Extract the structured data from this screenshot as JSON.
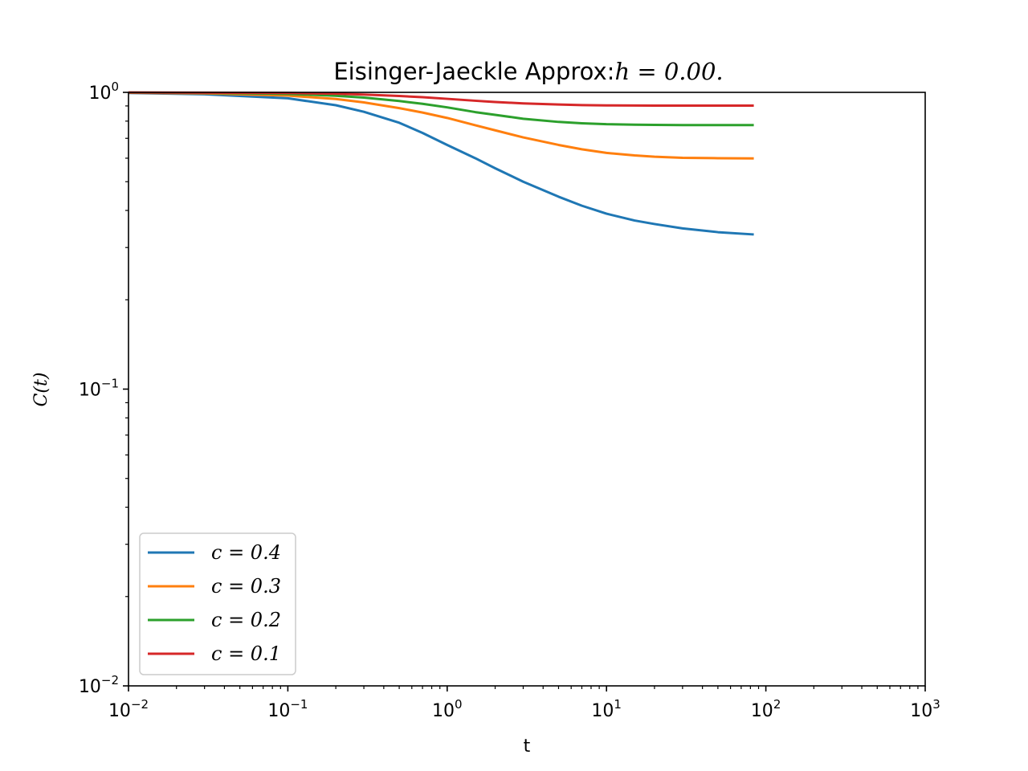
{
  "chart_data": {
    "type": "line",
    "title_prefix": "Eisinger-Jaeckle Approx:",
    "title_math": "h = 0.00.",
    "xlabel": "t",
    "ylabel": "C(t)",
    "xscale": "log",
    "yscale": "log",
    "xlim": [
      0.01,
      1000
    ],
    "ylim": [
      0.01,
      1
    ],
    "x_ticks": [
      {
        "base": "10",
        "exp": "−2"
      },
      {
        "base": "10",
        "exp": "−1"
      },
      {
        "base": "10",
        "exp": "0"
      },
      {
        "base": "10",
        "exp": "1"
      },
      {
        "base": "10",
        "exp": "2"
      },
      {
        "base": "10",
        "exp": "3"
      }
    ],
    "y_ticks": [
      {
        "base": "10",
        "exp": "−2"
      },
      {
        "base": "10",
        "exp": "−1"
      },
      {
        "base": "10",
        "exp": "0"
      }
    ],
    "legend_position": "lower-left",
    "grid": false,
    "series": [
      {
        "name": "c = 0.4",
        "color": "#1f77b4",
        "x": [
          0.01,
          0.03,
          0.1,
          0.2,
          0.3,
          0.5,
          0.7,
          1,
          1.5,
          2,
          3,
          5,
          7,
          10,
          15,
          20,
          30,
          50,
          84
        ],
        "y": [
          0.995,
          0.985,
          0.955,
          0.905,
          0.86,
          0.79,
          0.73,
          0.665,
          0.6,
          0.555,
          0.5,
          0.445,
          0.415,
          0.39,
          0.37,
          0.36,
          0.348,
          0.338,
          0.332
        ]
      },
      {
        "name": "c = 0.3",
        "color": "#ff7f0e",
        "x": [
          0.01,
          0.03,
          0.1,
          0.2,
          0.3,
          0.5,
          0.7,
          1,
          1.5,
          2,
          3,
          5,
          7,
          10,
          15,
          20,
          30,
          50,
          84
        ],
        "y": [
          0.997,
          0.992,
          0.975,
          0.95,
          0.925,
          0.885,
          0.855,
          0.82,
          0.775,
          0.745,
          0.705,
          0.665,
          0.643,
          0.625,
          0.613,
          0.607,
          0.602,
          0.6,
          0.599
        ]
      },
      {
        "name": "c = 0.2",
        "color": "#2ca02c",
        "x": [
          0.01,
          0.03,
          0.1,
          0.2,
          0.3,
          0.5,
          0.7,
          1,
          1.5,
          2,
          3,
          5,
          7,
          10,
          15,
          20,
          30,
          50,
          84
        ],
        "y": [
          0.998,
          0.996,
          0.988,
          0.974,
          0.96,
          0.935,
          0.915,
          0.89,
          0.858,
          0.84,
          0.815,
          0.795,
          0.787,
          0.781,
          0.778,
          0.777,
          0.776,
          0.776,
          0.776
        ]
      },
      {
        "name": "c = 0.1",
        "color": "#d62728",
        "x": [
          0.01,
          0.03,
          0.1,
          0.2,
          0.3,
          0.5,
          0.7,
          1,
          1.5,
          2,
          3,
          5,
          7,
          10,
          15,
          20,
          30,
          50,
          84
        ],
        "y": [
          0.999,
          0.998,
          0.995,
          0.99,
          0.983,
          0.972,
          0.963,
          0.951,
          0.937,
          0.928,
          0.918,
          0.91,
          0.906,
          0.904,
          0.903,
          0.902,
          0.902,
          0.902,
          0.902
        ]
      }
    ]
  }
}
